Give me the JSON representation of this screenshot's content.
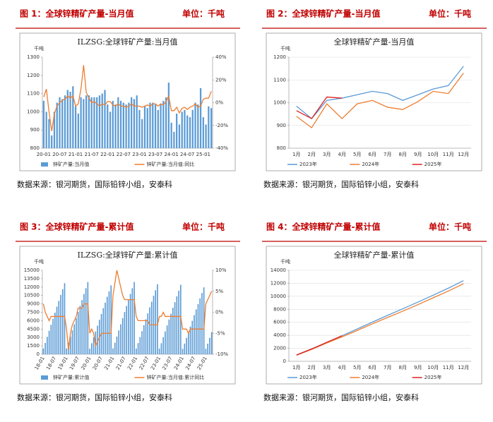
{
  "panels": [
    {
      "title": "图 1：全球锌精矿产量-当月值",
      "unit": "单位：千吨",
      "source": "数据来源：银河期货，国际铅锌小组，安泰科"
    },
    {
      "title": "图 2：全球锌精矿产量-当月值",
      "unit": "单位：千吨",
      "source": "数据来源：银河期货，国际铅锌小组，安泰科"
    },
    {
      "title": "图 3：全球锌精矿产量-累计值",
      "unit": "单位：千吨",
      "source": "数据来源：银河期货，国际铅锌小组，安泰科"
    },
    {
      "title": "图 4：全球锌精矿产量-累计值",
      "unit": "单位：千吨",
      "source": "数据来源：银河期货，国际铅锌小组，安泰科"
    }
  ],
  "chart_data": [
    {
      "type": "combo",
      "title": "ILZSG:全球锌矿产量:当月值",
      "y_label": "千吨",
      "legend": "bottom",
      "categories": [
        "20-01",
        null,
        null,
        null,
        null,
        null,
        "20-07",
        null,
        null,
        null,
        null,
        null,
        "21-01",
        null,
        null,
        null,
        null,
        null,
        "21-07",
        null,
        null,
        null,
        null,
        null,
        "22-01",
        null,
        null,
        null,
        null,
        null,
        "22-07",
        null,
        null,
        null,
        null,
        null,
        "23-01",
        null,
        null,
        null,
        null,
        null,
        "23-07",
        null,
        null,
        null,
        null,
        null,
        "24-01",
        null,
        null,
        null,
        null,
        null,
        "24-07",
        null,
        null,
        null,
        null,
        null,
        "25-01",
        null,
        null,
        null
      ],
      "ylim": [
        800,
        1300
      ],
      "yticks": [
        800,
        900,
        1000,
        1100,
        1200,
        1300
      ],
      "y2lim": [
        -40,
        40
      ],
      "y2ticks": [
        {
          "value": -40,
          "label": "-40%"
        },
        {
          "value": -20,
          "label": "-20%"
        },
        {
          "value": 0,
          "label": "0%"
        },
        {
          "value": 20,
          "label": "20%"
        },
        {
          "value": 40,
          "label": "40%"
        }
      ],
      "series": [
        {
          "name": "锌矿产量:当月值",
          "type": "bar",
          "color": "#5b9bd5",
          "values": [
            1060,
            1000,
            960,
            870,
            1000,
            1050,
            1080,
            1070,
            1090,
            1120,
            1110,
            1140,
            1030,
            990,
            1080,
            1070,
            1090,
            1090,
            1080,
            1080,
            1080,
            1090,
            1100,
            1120,
            1040,
            1000,
            1060,
            1040,
            1080,
            1060,
            1050,
            1040,
            1050,
            1080,
            1070,
            1090,
            1010,
            960,
            1030,
            1020,
            1050,
            1050,
            1040,
            1010,
            1040,
            1060,
            1080,
            1160,
            940,
            890,
            990,
            930,
            1000,
            1010,
            980,
            970,
            1010,
            1050,
            1040,
            1130,
            970,
            930,
            1030,
            1020
          ]
        },
        {
          "name": "锌矿产量:当月值:同比",
          "type": "line",
          "axis": "y2",
          "color": "#ed7d31",
          "values": [
            5,
            12,
            -8,
            -25,
            -10,
            -3,
            0,
            2,
            3,
            6,
            4,
            6,
            -3,
            -1,
            12,
            33,
            9,
            4,
            0,
            1,
            -1,
            -3,
            -1,
            -2,
            1,
            1,
            -2,
            -3,
            -1,
            -3,
            -3,
            -4,
            -3,
            -1,
            -3,
            -3,
            -3,
            -4,
            -3,
            -2,
            -3,
            -1,
            -1,
            -3,
            -1,
            -2,
            1,
            6,
            -7,
            -7,
            -4,
            -9,
            -5,
            -4,
            -6,
            -4,
            -3,
            -1,
            -4,
            -3,
            3,
            4,
            4,
            10
          ]
        }
      ]
    },
    {
      "type": "line",
      "title": "全球锌精矿产量-当月值",
      "y_label": "千吨",
      "legend": "bottom",
      "categories": [
        "1月",
        "2月",
        "3月",
        "4月",
        "5月",
        "6月",
        "7月",
        "8月",
        "9月",
        "10月",
        "11月",
        "12月"
      ],
      "ylim": [
        800,
        1200
      ],
      "yticks": [
        800,
        900,
        1000,
        1100,
        1200
      ],
      "series": [
        {
          "name": "2023年",
          "color": "#5b9bd5",
          "values": [
            985,
            930,
            1010,
            1020,
            1035,
            1050,
            1040,
            1010,
            1035,
            1060,
            1075,
            1160
          ]
        },
        {
          "name": "2024年",
          "color": "#ed7d31",
          "values": [
            940,
            890,
            995,
            930,
            995,
            1010,
            980,
            970,
            1005,
            1050,
            1040,
            1130
          ]
        },
        {
          "name": "2025年",
          "color": "#e02020",
          "values": [
            965,
            930,
            1025,
            1020,
            null,
            null,
            null,
            null,
            null,
            null,
            null,
            null
          ]
        }
      ]
    },
    {
      "type": "combo",
      "title": "ILZSG:全球锌矿产量:累计值",
      "y_label": "千吨",
      "legend": "bottom",
      "rotate_labels": true,
      "categories": [
        "18-01",
        null,
        null,
        null,
        null,
        null,
        "18-07",
        null,
        null,
        null,
        null,
        null,
        "19-01",
        null,
        null,
        null,
        null,
        null,
        "19-07",
        null,
        null,
        null,
        null,
        null,
        "20-01",
        null,
        null,
        null,
        null,
        null,
        "20-07",
        null,
        null,
        null,
        null,
        null,
        "21-01",
        null,
        null,
        null,
        null,
        null,
        "21-07",
        null,
        null,
        null,
        null,
        null,
        "22-01",
        null,
        null,
        null,
        null,
        null,
        "22-07",
        null,
        null,
        null,
        null,
        null,
        "23-01",
        null,
        null,
        null,
        null,
        null,
        "23-07",
        null,
        null,
        null,
        null,
        null,
        "24-01",
        null,
        null,
        null,
        null,
        null,
        "24-07",
        null,
        null,
        null,
        null,
        null,
        "25-01",
        null,
        null,
        null
      ],
      "ylim": [
        0,
        15000
      ],
      "yticks": [
        0,
        1500,
        3000,
        4500,
        6000,
        7500,
        9000,
        10500,
        12000,
        13500,
        15000
      ],
      "y2lim": [
        -10,
        10
      ],
      "y2ticks": [
        {
          "value": -10,
          "label": "-10%"
        },
        {
          "value": -5,
          "label": "-5%"
        },
        {
          "value": 0,
          "label": "0%"
        },
        {
          "value": 5,
          "label": "5%"
        },
        {
          "value": 10,
          "label": "10%"
        }
      ],
      "series": [
        {
          "name": "锌矿产量:累计值",
          "type": "bar",
          "color": "#5b9bd5",
          "values": [
            1040,
            2030,
            3110,
            4190,
            5270,
            6350,
            7430,
            8510,
            9530,
            10600,
            11620,
            12700,
            1060,
            2060,
            3160,
            4260,
            5350,
            6450,
            7550,
            8640,
            9680,
            10770,
            11800,
            12900,
            1010,
            1970,
            3010,
            4060,
            5100,
            6150,
            7200,
            8240,
            9230,
            10270,
            11250,
            12300,
            1060,
            2060,
            3160,
            4260,
            5350,
            6450,
            7550,
            8640,
            9680,
            10770,
            11800,
            12900,
            1030,
            2000,
            3060,
            4130,
            5190,
            6250,
            7310,
            8380,
            9380,
            10440,
            11440,
            12500,
            1020,
            1980,
            3040,
            4090,
            5150,
            6200,
            7250,
            8310,
            9300,
            10350,
            11350,
            12400,
            980,
            1910,
            2930,
            3940,
            4960,
            5980,
            6990,
            8010,
            8960,
            9980,
            10930,
            11950,
            970,
            1900,
            2930,
            3950
          ]
        },
        {
          "name": "锌矿产量:当月值:累计同比",
          "type": "line",
          "axis": "y2",
          "color": "#ed7d31",
          "values": [
            2,
            0,
            -1,
            -2,
            -1,
            -1,
            -1,
            -1,
            -1,
            -1,
            -1,
            -1,
            -4,
            -9,
            -5,
            -3,
            -2,
            -1,
            1,
            1,
            1,
            2,
            2,
            2,
            -5,
            -4,
            -5,
            -8,
            -7,
            -6,
            -5,
            -5,
            -5,
            -5,
            -5,
            -5,
            4,
            7,
            10,
            8,
            6,
            4,
            3,
            3,
            3,
            3,
            3,
            3,
            -1,
            -2,
            -2,
            -2,
            -2,
            -2,
            -2,
            -3,
            -3,
            -3,
            -3,
            -3,
            -1,
            -1,
            0,
            -1,
            -1,
            -1,
            -1,
            -1,
            -1,
            -1,
            -1,
            -1,
            -4,
            -4,
            -4,
            -5,
            -4,
            -4,
            -4,
            -4,
            -4,
            -4,
            -4,
            -4,
            2,
            3,
            4,
            5
          ]
        }
      ]
    },
    {
      "type": "line",
      "title": "全球锌精矿产量-累计值",
      "y_label": "千吨",
      "legend": "bottom",
      "categories": [
        "1月",
        "2月",
        "3月",
        "4月",
        "5月",
        "6月",
        "7月",
        "8月",
        "9月",
        "10月",
        "11月",
        "12月"
      ],
      "ylim": [
        0,
        14000
      ],
      "yticks": [
        0,
        2000,
        4000,
        6000,
        8000,
        10000,
        12000,
        14000
      ],
      "series": [
        {
          "name": "2023年",
          "color": "#5b9bd5",
          "values": [
            980,
            1910,
            2920,
            3940,
            4975,
            6025,
            7065,
            8075,
            9110,
            10170,
            11245,
            12405
          ]
        },
        {
          "name": "2024年",
          "color": "#ed7d31",
          "values": [
            940,
            1830,
            2825,
            3755,
            4750,
            5760,
            6740,
            7710,
            8715,
            9765,
            10805,
            11935
          ]
        },
        {
          "name": "2025年",
          "color": "#e02020",
          "values": [
            965,
            1895,
            2920,
            3940,
            null,
            null,
            null,
            null,
            null,
            null,
            null,
            null
          ]
        }
      ]
    }
  ]
}
